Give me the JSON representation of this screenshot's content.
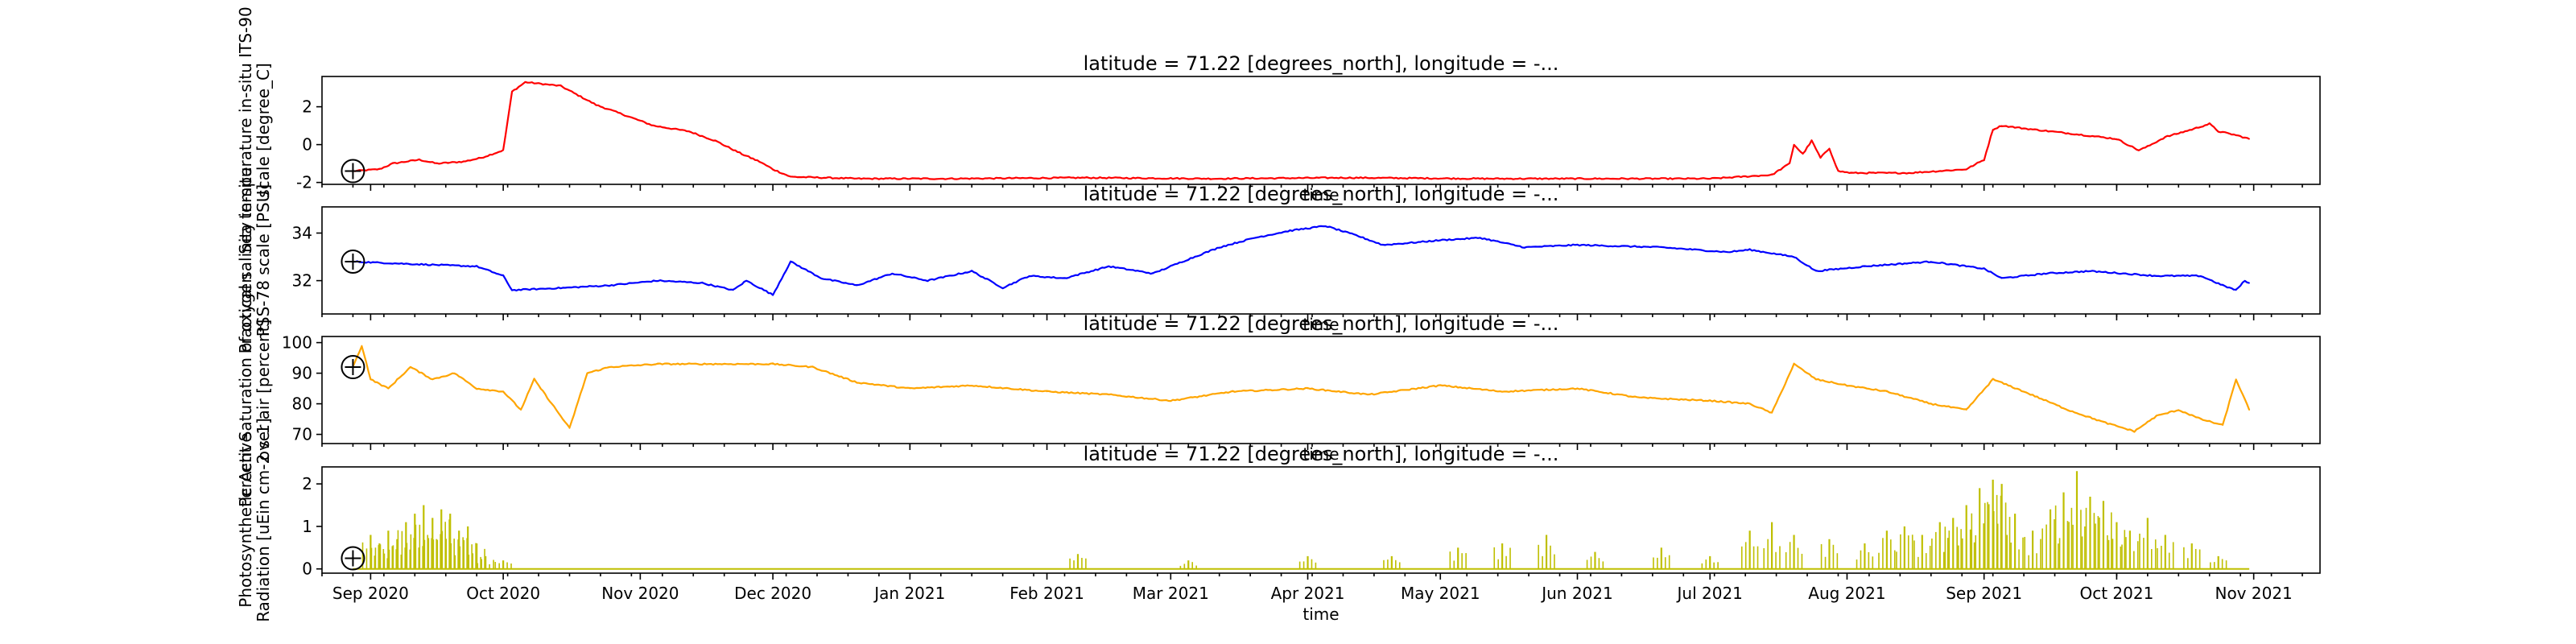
{
  "chart_data": [
    {
      "type": "line",
      "title": "latitude = 71.22 [degrees_north], longitude = -...",
      "xlabel": "time",
      "ylabel": [
        "Sea temperature in-situ ITS-90",
        "scale [degree_C]"
      ],
      "xlim": [
        "2020-08-21",
        "2021-11-16"
      ],
      "ylim": [
        -2.1,
        3.6
      ],
      "yticks": [
        -2,
        0,
        2
      ],
      "marker": {
        "x": "2020-08-28",
        "y": -1.4
      },
      "series": [
        {
          "color": "#ff0000",
          "x": [
            "2020-08-28",
            "2020-09-03",
            "2020-09-06",
            "2020-09-12",
            "2020-09-16",
            "2020-09-22",
            "2020-09-26",
            "2020-10-01",
            "2020-10-03",
            "2020-10-06",
            "2020-10-10",
            "2020-10-14",
            "2020-10-18",
            "2020-10-22",
            "2020-10-28",
            "2020-11-04",
            "2020-11-12",
            "2020-11-18",
            "2020-11-24",
            "2020-11-28",
            "2020-12-01",
            "2020-12-05",
            "2020-12-20",
            "2021-01-10",
            "2021-02-10",
            "2021-03-10",
            "2021-04-10",
            "2021-05-10",
            "2021-06-10",
            "2021-07-01",
            "2021-07-15",
            "2021-07-19",
            "2021-07-20",
            "2021-07-22",
            "2021-07-24",
            "2021-07-26",
            "2021-07-28",
            "2021-07-30",
            "2021-08-02",
            "2021-08-15",
            "2021-08-28",
            "2021-09-01",
            "2021-09-03",
            "2021-09-05",
            "2021-09-12",
            "2021-09-20",
            "2021-10-01",
            "2021-10-06",
            "2021-10-08",
            "2021-10-12",
            "2021-10-18",
            "2021-10-22",
            "2021-10-24",
            "2021-10-28",
            "2021-10-31"
          ],
          "values": [
            -1.4,
            -1.3,
            -1.0,
            -0.8,
            -1.0,
            -0.9,
            -0.7,
            -0.3,
            2.8,
            3.3,
            3.2,
            3.1,
            2.6,
            2.1,
            1.6,
            1.0,
            0.7,
            0.2,
            -0.5,
            -0.9,
            -1.3,
            -1.7,
            -1.8,
            -1.8,
            -1.75,
            -1.8,
            -1.75,
            -1.8,
            -1.8,
            -1.8,
            -1.6,
            -1.0,
            0.0,
            -0.5,
            0.2,
            -0.7,
            -0.2,
            -1.4,
            -1.5,
            -1.5,
            -1.3,
            -0.8,
            0.8,
            1.0,
            0.8,
            0.6,
            0.3,
            -0.3,
            -0.1,
            0.4,
            0.8,
            1.1,
            0.7,
            0.5,
            0.3
          ]
        }
      ]
    },
    {
      "type": "line",
      "title": "latitude = 71.22 [degrees_north], longitude = -...",
      "xlabel": "time",
      "ylabel": [
        "Practical salinity in-situ",
        "PSS-78 scale [PSU]"
      ],
      "xlim": [
        "2020-08-21",
        "2021-11-16"
      ],
      "ylim": [
        30.6,
        35.1
      ],
      "yticks": [
        32,
        34
      ],
      "marker": {
        "x": "2020-08-28",
        "y": 32.8
      },
      "series": [
        {
          "color": "#0000ff",
          "x": [
            "2020-08-28",
            "2020-09-10",
            "2020-09-25",
            "2020-10-01",
            "2020-10-03",
            "2020-10-15",
            "2020-10-25",
            "2020-11-05",
            "2020-11-15",
            "2020-11-22",
            "2020-11-25",
            "2020-12-01",
            "2020-12-05",
            "2020-12-12",
            "2020-12-20",
            "2020-12-28",
            "2021-01-05",
            "2021-01-15",
            "2021-01-22",
            "2021-01-28",
            "2021-02-05",
            "2021-02-15",
            "2021-02-25",
            "2021-03-05",
            "2021-03-12",
            "2021-03-20",
            "2021-03-28",
            "2021-04-05",
            "2021-04-12",
            "2021-04-18",
            "2021-04-25",
            "2021-05-01",
            "2021-05-10",
            "2021-05-20",
            "2021-06-01",
            "2021-06-20",
            "2021-07-05",
            "2021-07-10",
            "2021-07-20",
            "2021-07-25",
            "2021-08-05",
            "2021-08-20",
            "2021-09-01",
            "2021-09-05",
            "2021-09-15",
            "2021-09-25",
            "2021-10-10",
            "2021-10-20",
            "2021-10-25",
            "2021-10-28",
            "2021-10-30",
            "2021-10-31"
          ],
          "values": [
            32.8,
            32.7,
            32.6,
            32.2,
            31.6,
            31.7,
            31.8,
            32.0,
            31.9,
            31.6,
            32.0,
            31.4,
            32.8,
            32.1,
            31.8,
            32.3,
            32.0,
            32.4,
            31.7,
            32.2,
            32.1,
            32.6,
            32.3,
            32.9,
            33.4,
            33.8,
            34.1,
            34.3,
            33.9,
            33.5,
            33.6,
            33.7,
            33.8,
            33.4,
            33.5,
            33.4,
            33.2,
            33.3,
            33.0,
            32.4,
            32.6,
            32.8,
            32.5,
            32.1,
            32.3,
            32.4,
            32.2,
            32.2,
            31.8,
            31.6,
            32.0,
            31.9
          ]
        }
      ]
    },
    {
      "type": "line",
      "title": "latitude = 71.22 [degrees_north], longitude = -...",
      "xlabel": "time",
      "ylabel": [
        "Percent Saturation of oxygen",
        "over air [percent]"
      ],
      "xlim": [
        "2020-08-21",
        "2021-11-16"
      ],
      "ylim": [
        67,
        102
      ],
      "yticks": [
        70,
        80,
        90,
        100
      ],
      "marker": {
        "x": "2020-08-28",
        "y": 92
      },
      "series": [
        {
          "color": "#ffa500",
          "x": [
            "2020-08-28",
            "2020-08-30",
            "2020-09-01",
            "2020-09-05",
            "2020-09-10",
            "2020-09-15",
            "2020-09-20",
            "2020-09-25",
            "2020-10-01",
            "2020-10-05",
            "2020-10-08",
            "2020-10-12",
            "2020-10-16",
            "2020-10-20",
            "2020-10-25",
            "2020-11-05",
            "2020-11-20",
            "2020-12-01",
            "2020-12-10",
            "2020-12-20",
            "2021-01-01",
            "2021-01-15",
            "2021-02-01",
            "2021-02-15",
            "2021-03-01",
            "2021-03-15",
            "2021-04-01",
            "2021-04-15",
            "2021-05-01",
            "2021-05-15",
            "2021-06-01",
            "2021-06-15",
            "2021-07-01",
            "2021-07-10",
            "2021-07-15",
            "2021-07-20",
            "2021-07-25",
            "2021-08-01",
            "2021-08-10",
            "2021-08-20",
            "2021-08-28",
            "2021-09-03",
            "2021-09-10",
            "2021-09-20",
            "2021-09-28",
            "2021-10-05",
            "2021-10-10",
            "2021-10-15",
            "2021-10-20",
            "2021-10-25",
            "2021-10-28",
            "2021-10-31"
          ],
          "values": [
            92,
            99,
            88,
            85,
            92,
            88,
            90,
            85,
            84,
            78,
            88,
            80,
            72,
            90,
            92,
            93,
            93,
            93,
            92,
            87,
            85,
            86,
            84,
            83,
            81,
            84,
            85,
            83,
            86,
            84,
            85,
            82,
            81,
            80,
            77,
            93,
            88,
            86,
            84,
            80,
            78,
            88,
            84,
            78,
            74,
            71,
            76,
            78,
            75,
            73,
            88,
            78
          ]
        }
      ]
    },
    {
      "type": "bar",
      "title": "latitude = 71.22 [degrees_north], longitude = -...",
      "xlabel": "time",
      "ylabel": [
        "Photosynthetic Active",
        "Radiation [uEin cm-2 s-1]"
      ],
      "xlim": [
        "2020-08-21",
        "2021-11-16"
      ],
      "ylim": [
        -0.1,
        2.4
      ],
      "yticks": [
        0,
        1,
        2
      ],
      "xticks": [
        "Sep 2020",
        "Oct 2020",
        "Nov 2020",
        "Dec 2020",
        "Jan 2021",
        "Feb 2021",
        "Mar 2021",
        "Apr 2021",
        "May 2021",
        "Jun 2021",
        "Jul 2021",
        "Aug 2021",
        "Sep 2021",
        "Oct 2021",
        "Nov 2021"
      ],
      "marker": {
        "x": "2020-08-28",
        "y": 0.25
      },
      "series": [
        {
          "color": "#bfbf00",
          "x": [
            "2020-09-01",
            "2020-09-03",
            "2020-09-05",
            "2020-09-07",
            "2020-09-09",
            "2020-09-11",
            "2020-09-13",
            "2020-09-15",
            "2020-09-17",
            "2020-09-19",
            "2020-09-21",
            "2020-09-23",
            "2020-09-25",
            "2020-09-27",
            "2020-10-01",
            "2021-02-08",
            "2021-03-05",
            "2021-04-01",
            "2021-04-20",
            "2021-05-05",
            "2021-05-15",
            "2021-05-25",
            "2021-06-05",
            "2021-06-20",
            "2021-07-01",
            "2021-07-10",
            "2021-07-15",
            "2021-07-20",
            "2021-07-28",
            "2021-08-05",
            "2021-08-10",
            "2021-08-14",
            "2021-08-18",
            "2021-08-22",
            "2021-08-25",
            "2021-08-28",
            "2021-08-31",
            "2021-09-03",
            "2021-09-05",
            "2021-09-08",
            "2021-09-12",
            "2021-09-16",
            "2021-09-19",
            "2021-09-22",
            "2021-09-25",
            "2021-09-28",
            "2021-10-01",
            "2021-10-04",
            "2021-10-08",
            "2021-10-12",
            "2021-10-18",
            "2021-10-24"
          ],
          "values": [
            0.8,
            0.6,
            0.9,
            0.7,
            1.1,
            1.3,
            1.5,
            1.2,
            1.4,
            1.3,
            0.9,
            1.0,
            0.6,
            0.3,
            0.2,
            0.35,
            0.2,
            0.3,
            0.3,
            0.5,
            0.6,
            0.8,
            0.4,
            0.5,
            0.3,
            0.9,
            1.1,
            0.8,
            0.7,
            0.6,
            0.9,
            1.0,
            0.8,
            1.1,
            1.2,
            1.5,
            1.9,
            2.1,
            2.0,
            1.3,
            0.9,
            1.4,
            1.8,
            2.3,
            1.7,
            1.6,
            1.1,
            0.9,
            1.2,
            0.8,
            0.6,
            0.3
          ]
        }
      ]
    }
  ]
}
